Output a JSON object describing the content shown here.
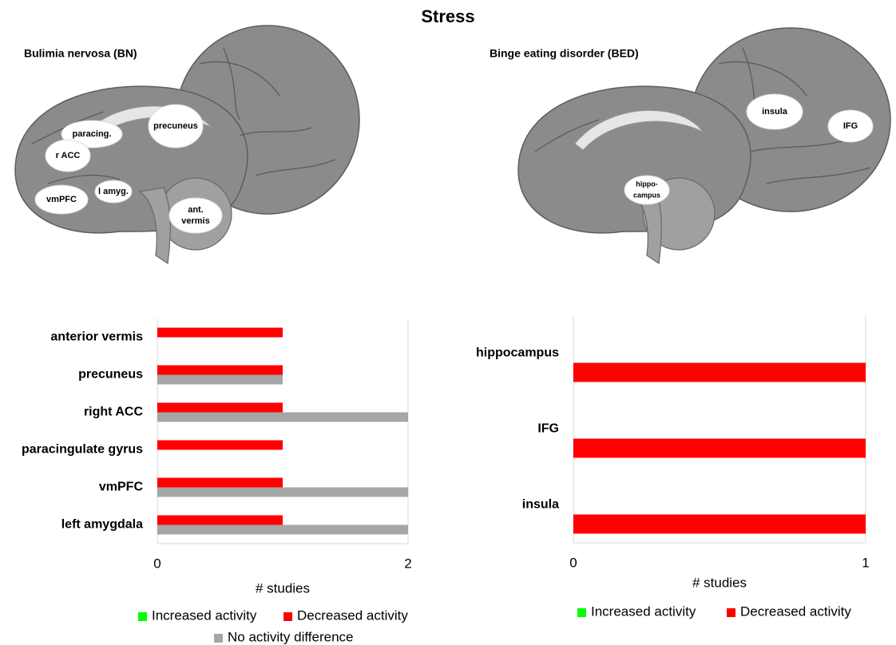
{
  "title": "Stress",
  "brain_panels": [
    {
      "title": "Bulimia nervosa (BN)",
      "labels": [
        [
          "paracing."
        ],
        [
          "precuneus"
        ],
        [
          "r ACC"
        ],
        [
          "vmPFC"
        ],
        [
          "l amyg."
        ],
        [
          "ant.",
          "vermis"
        ]
      ]
    },
    {
      "title": "Binge eating disorder (BED)",
      "labels": [
        [
          "insula"
        ],
        [
          "IFG"
        ],
        [
          "hippo-",
          "campus"
        ]
      ]
    }
  ],
  "chart_data": [
    {
      "type": "hbar",
      "categories": [
        "anterior vermis",
        "precuneus",
        "right ACC",
        "paracingulate gyrus",
        "vmPFC",
        "left amygdala"
      ],
      "series": [
        {
          "name": "Increased activity",
          "color": "#00ff00",
          "values": [
            0,
            0,
            0,
            0,
            0,
            0
          ]
        },
        {
          "name": "Decreased activity",
          "color": "#ff0000",
          "values": [
            1,
            1,
            1,
            1,
            1,
            1
          ]
        },
        {
          "name": "No activity difference",
          "color": "#a6a6a6",
          "values": [
            0,
            1,
            2,
            0,
            2,
            2
          ]
        }
      ],
      "xlim": [
        0,
        2
      ],
      "xticks": [
        0,
        2
      ],
      "xlabel": "# studies",
      "grid": true
    },
    {
      "type": "hbar",
      "categories": [
        "hippocampus",
        "IFG",
        "insula"
      ],
      "series": [
        {
          "name": "Increased activity",
          "color": "#00ff00",
          "values": [
            0,
            0,
            0
          ]
        },
        {
          "name": "Decreased activity",
          "color": "#ff0000",
          "values": [
            1,
            1,
            1
          ]
        }
      ],
      "xlim": [
        0,
        1
      ],
      "xticks": [
        0,
        1
      ],
      "xlabel": "# studies",
      "grid": true
    }
  ]
}
